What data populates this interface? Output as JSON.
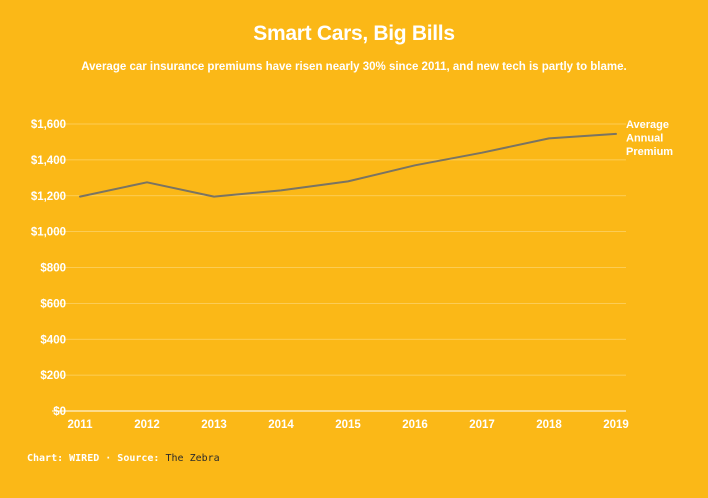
{
  "chart_data": {
    "type": "line",
    "title": "Smart Cars, Big Bills",
    "subtitle": "Average car insurance premiums have risen nearly 30% since 2011, and new tech is partly to blame.",
    "x": [
      "2011",
      "2012",
      "2013",
      "2014",
      "2015",
      "2016",
      "2017",
      "2018",
      "2019"
    ],
    "series": [
      {
        "name": "Average Annual Premium",
        "name_lines": [
          "Average",
          "Annual",
          "Premium"
        ],
        "values": [
          1195,
          1275,
          1195,
          1230,
          1280,
          1370,
          1440,
          1520,
          1545
        ],
        "color": "#7a7462"
      }
    ],
    "y_ticks": [
      0,
      200,
      400,
      600,
      800,
      1000,
      1200,
      1400,
      1600
    ],
    "y_tick_labels": [
      "$0",
      "$200",
      "$400",
      "$600",
      "$800",
      "$1,000",
      "$1,200",
      "$1,400",
      "$1,600"
    ],
    "ylim": [
      0,
      1600
    ],
    "grid": true,
    "gridline_color": "#fcd36a",
    "background": "#FBB817"
  },
  "footer": {
    "chart_label": "Chart: WIRED · Source:",
    "source": "The Zebra"
  }
}
